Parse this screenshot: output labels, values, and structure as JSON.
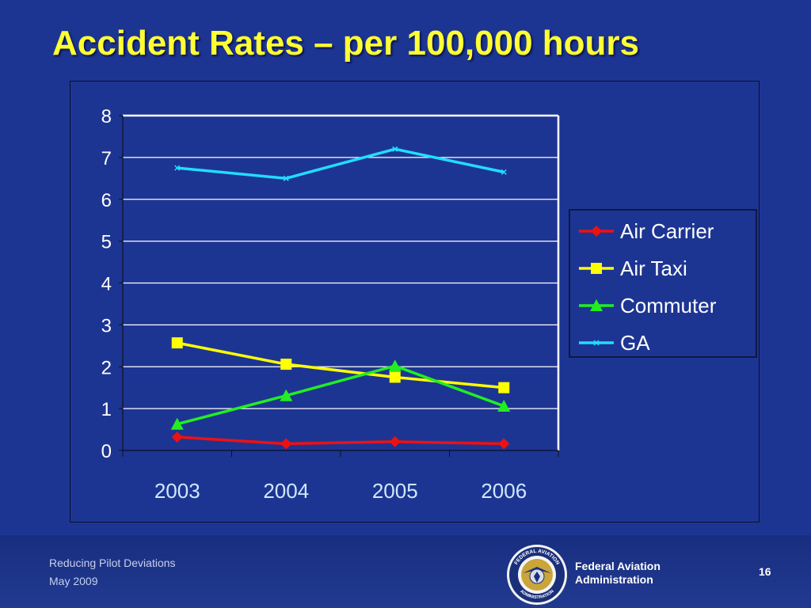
{
  "slide": {
    "title": "Accident Rates – per 100,000 hours",
    "page_number": "16"
  },
  "footer": {
    "line1": "Reducing Pilot Deviations",
    "line2": "May 2009",
    "org_line1": "Federal Aviation",
    "org_line2": "Administration",
    "seal_text_top": "FEDERAL AVIATION",
    "seal_text_bottom": "ADMINISTRATION"
  },
  "colors": {
    "background": "#1d3592",
    "title": "#ffff33",
    "chart_text": "#ffffff",
    "x_tick_text": "#cfe8ff",
    "gridline": "#ffffff"
  },
  "chart_data": {
    "type": "line",
    "title": "",
    "xlabel": "",
    "ylabel": "",
    "categories": [
      "2003",
      "2004",
      "2005",
      "2006"
    ],
    "ylim": [
      0,
      8
    ],
    "yticks": [
      0,
      1,
      2,
      3,
      4,
      5,
      6,
      7,
      8
    ],
    "grid": true,
    "legend_position": "right",
    "series": [
      {
        "name": "Air Carrier",
        "values": [
          0.32,
          0.16,
          0.21,
          0.16
        ],
        "color": "#ee1111",
        "marker": "diamond"
      },
      {
        "name": "Air Taxi",
        "values": [
          2.57,
          2.06,
          1.75,
          1.5
        ],
        "color": "#ffff00",
        "marker": "square"
      },
      {
        "name": "Commuter",
        "values": [
          0.63,
          1.31,
          2.02,
          1.06
        ],
        "color": "#22ee22",
        "marker": "triangle"
      },
      {
        "name": "GA",
        "values": [
          6.75,
          6.5,
          7.2,
          6.65
        ],
        "color": "#22ddff",
        "marker": "x"
      }
    ]
  }
}
